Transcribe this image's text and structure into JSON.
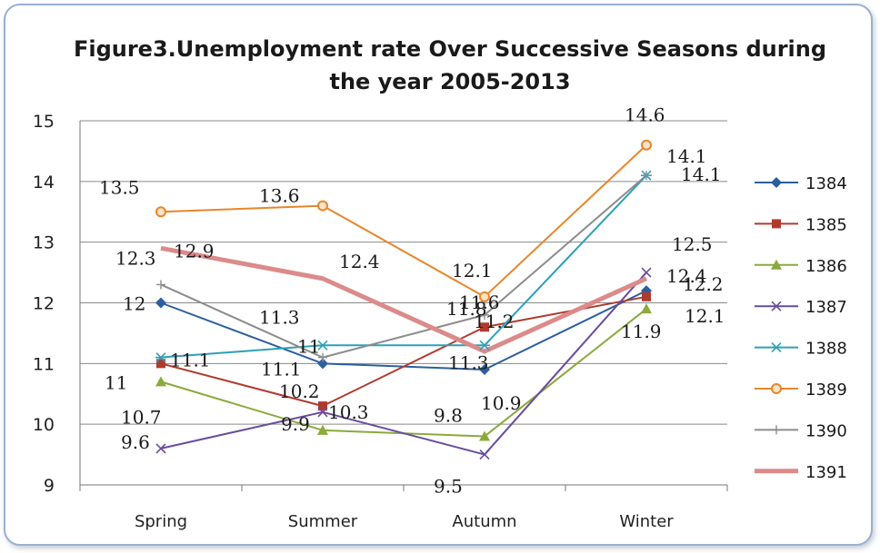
{
  "chart_data": {
    "type": "line",
    "title_line1": "Figure3.Unemployment rate Over Successive Seasons during",
    "title_line2": "the year 2005-2013",
    "categories": [
      "Spring",
      "Summer",
      "Autumn",
      "Winter"
    ],
    "ylim": [
      9,
      15
    ],
    "yticks": [
      9,
      10,
      11,
      12,
      13,
      14,
      15
    ],
    "grid": "horizontal",
    "legend_position": "right",
    "series": [
      {
        "name": "1384",
        "values": [
          12,
          11,
          10.9,
          12.2
        ],
        "color": "#2c5f9e",
        "marker": "diamond",
        "labels": [
          "12",
          "11",
          "10.9",
          "12.2"
        ]
      },
      {
        "name": "1385",
        "values": [
          11,
          10.3,
          11.6,
          12.1
        ],
        "color": "#b03a2e",
        "marker": "square",
        "labels": [
          "11",
          "10.3",
          "11.6",
          "12.1"
        ]
      },
      {
        "name": "1386",
        "values": [
          10.7,
          9.9,
          9.8,
          11.9
        ],
        "color": "#8aaa3c",
        "marker": "triangle",
        "labels": [
          "10.7",
          "9.9",
          "9.8",
          "11.9"
        ]
      },
      {
        "name": "1387",
        "values": [
          9.6,
          10.2,
          9.5,
          12.5
        ],
        "color": "#6a4c9c",
        "marker": "x",
        "labels": [
          "9.6",
          "10.2",
          "9.5",
          "12.5"
        ]
      },
      {
        "name": "1388",
        "values": [
          11.1,
          11.3,
          11.3,
          14.1
        ],
        "color": "#2ea0b8",
        "marker": "star",
        "labels": [
          "11.1",
          "11.3",
          "11.3",
          "14.1"
        ]
      },
      {
        "name": "1389",
        "values": [
          13.5,
          13.6,
          12.1,
          14.6
        ],
        "color": "#e8862a",
        "marker": "circle",
        "labels": [
          "13.5",
          "13.6",
          "12.1",
          "14.6"
        ]
      },
      {
        "name": "1390",
        "values": [
          12.3,
          11.1,
          11.8,
          14.1
        ],
        "color": "#8c8c8c",
        "marker": "plus",
        "labels": [
          "12.3",
          "11.1",
          "11.8",
          "14.1"
        ]
      },
      {
        "name": "1391",
        "values": [
          12.9,
          12.4,
          11.2,
          12.4
        ],
        "color": "#dc8a8a",
        "marker": "none",
        "thick": true,
        "labels": [
          "12.9",
          "12.4",
          "11.2",
          "12.4"
        ]
      }
    ]
  }
}
